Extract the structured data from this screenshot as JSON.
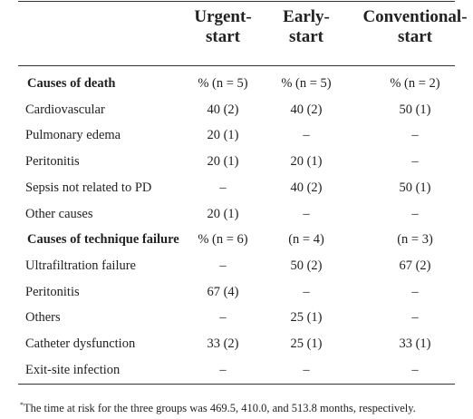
{
  "table": {
    "columns": [
      [
        "Urgent-",
        "start"
      ],
      [
        "Early-",
        "start"
      ],
      [
        "Conventional-",
        "start"
      ]
    ],
    "rows": [
      {
        "label": "Causes of death",
        "section": true,
        "cells": [
          "% (n = 5)",
          "% (n = 5)",
          "% (n = 2)"
        ]
      },
      {
        "label": "Cardiovascular",
        "section": false,
        "cells": [
          "40 (2)",
          "40 (2)",
          "50 (1)"
        ]
      },
      {
        "label": "Pulmonary edema",
        "section": false,
        "cells": [
          "20 (1)",
          "–",
          "–"
        ]
      },
      {
        "label": "Peritonitis",
        "section": false,
        "cells": [
          "20 (1)",
          "20 (1)",
          "–"
        ]
      },
      {
        "label": "Sepsis not related to PD",
        "section": false,
        "cells": [
          "–",
          "40 (2)",
          "50 (1)"
        ]
      },
      {
        "label": "Other causes",
        "section": false,
        "cells": [
          "20 (1)",
          "–",
          "–"
        ]
      },
      {
        "label": "Causes of technique failure",
        "section": true,
        "cells": [
          "% (n = 6)",
          "(n = 4)",
          "(n = 3)"
        ]
      },
      {
        "label": "Ultrafiltration failure",
        "section": false,
        "cells": [
          "–",
          "50 (2)",
          "67 (2)"
        ]
      },
      {
        "label": "Peritonitis",
        "section": false,
        "cells": [
          "67 (4)",
          "–",
          "–"
        ]
      },
      {
        "label": "Others",
        "section": false,
        "cells": [
          "–",
          "25 (1)",
          "–"
        ]
      },
      {
        "label": "Catheter dysfunction",
        "section": false,
        "cells": [
          "33 (2)",
          "25 (1)",
          "33 (1)"
        ]
      },
      {
        "label": "Exit-site infection",
        "section": false,
        "cells": [
          "–",
          "–",
          "–"
        ]
      }
    ]
  },
  "footnote": {
    "mark": "*",
    "text": "The time at risk for the three groups was 469.5, 410.0, and 513.8 months, respectively."
  }
}
